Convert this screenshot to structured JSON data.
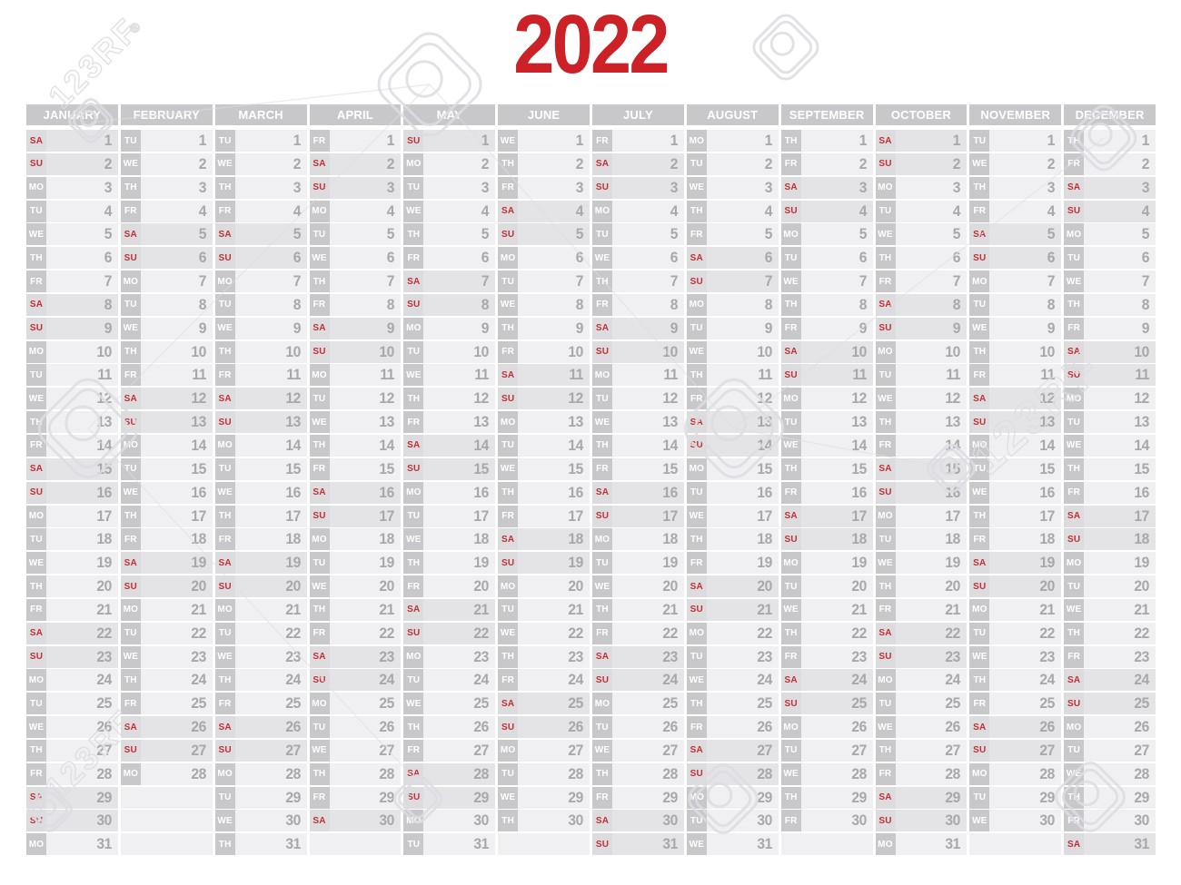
{
  "title": "2022",
  "weekday_labels": [
    "MO",
    "TU",
    "WE",
    "TH",
    "FR",
    "SA",
    "SU"
  ],
  "months": [
    {
      "name": "JANUARY",
      "days": 31,
      "first_dow": 5,
      "first_day_label": "SA"
    },
    {
      "name": "FEBRUARY",
      "days": 28,
      "first_dow": 1,
      "first_day_label": "TU"
    },
    {
      "name": "MARCH",
      "days": 31,
      "first_dow": 1,
      "first_day_label": "TU"
    },
    {
      "name": "APRIL",
      "days": 30,
      "first_dow": 4,
      "first_day_label": "FR"
    },
    {
      "name": "MAY",
      "days": 31,
      "first_dow": 6,
      "first_day_label": "SU"
    },
    {
      "name": "JUNE",
      "days": 30,
      "first_dow": 2,
      "first_day_label": "WE"
    },
    {
      "name": "JULY",
      "days": 31,
      "first_dow": 4,
      "first_day_label": "FR"
    },
    {
      "name": "AUGUST",
      "days": 31,
      "first_dow": 0,
      "first_day_label": "MO"
    },
    {
      "name": "SEPTEMBER",
      "days": 30,
      "first_dow": 3,
      "first_day_label": "TH"
    },
    {
      "name": "OCTOBER",
      "days": 31,
      "first_dow": 5,
      "first_day_label": "SA"
    },
    {
      "name": "NOVEMBER",
      "days": 30,
      "first_dow": 1,
      "first_day_label": "TU"
    },
    {
      "name": "DECEMBER",
      "days": 31,
      "first_dow": 3,
      "first_day_label": "TH"
    }
  ],
  "weekend_labels": [
    "SA",
    "SU"
  ],
  "watermark": {
    "text": "123RF",
    "reg": "®"
  },
  "colors": {
    "title_red": "#cb2127",
    "red": "#c22f35",
    "box_gray": "#c8c8cb",
    "row_light": "#f0f0f2",
    "row_weekend": "#e4e4e7",
    "num_gray": "#a8a8ab",
    "wm": "#dedee2",
    "background": "#ffffff"
  }
}
